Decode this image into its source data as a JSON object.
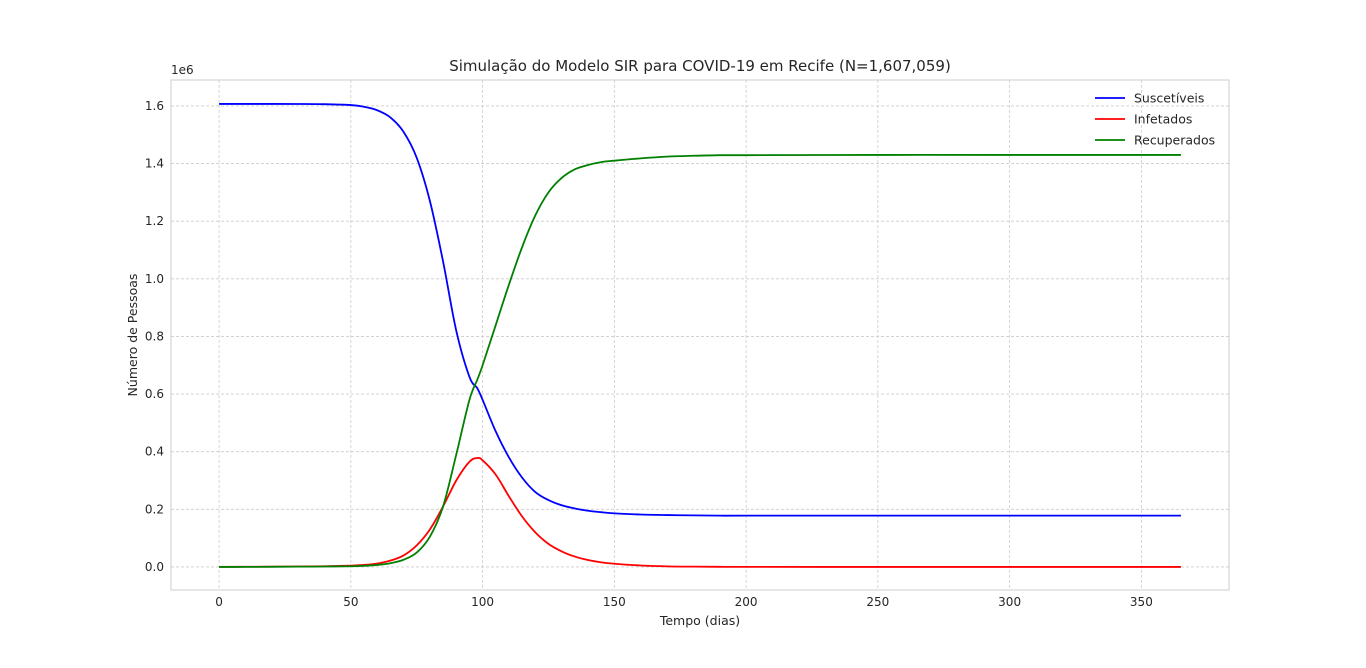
{
  "chart_data": {
    "type": "line",
    "title": "Simulação do Modelo SIR para COVID-19 em Recife (N=1,607,059)",
    "xlabel": "Tempo (dias)",
    "ylabel": "Número de Pessoas",
    "y_exponent_label": "1e6",
    "xlim": [
      -18.25,
      383.25
    ],
    "ylim": [
      -0.08,
      1.69
    ],
    "x_ticks": [
      0,
      50,
      100,
      150,
      200,
      250,
      300,
      350
    ],
    "x_tick_labels": [
      "0",
      "50",
      "100",
      "150",
      "200",
      "250",
      "300",
      "350"
    ],
    "y_ticks": [
      0.0,
      0.2,
      0.4,
      0.6,
      0.8,
      1.0,
      1.2,
      1.4,
      1.6
    ],
    "y_tick_labels": [
      "0.0",
      "0.2",
      "0.4",
      "0.6",
      "0.8",
      "1.0",
      "1.2",
      "1.4",
      "1.6"
    ],
    "grid": true,
    "legend_position": "top-right",
    "x": [
      0,
      10,
      20,
      30,
      40,
      50,
      55,
      60,
      65,
      70,
      75,
      80,
      85,
      90,
      95,
      98,
      100,
      105,
      110,
      115,
      120,
      125,
      130,
      135,
      140,
      145,
      150,
      160,
      170,
      180,
      190,
      200,
      250,
      300,
      365
    ],
    "series": [
      {
        "name": "Suscetíveis",
        "color": "#0000ff",
        "values": [
          1.607,
          1.607,
          1.607,
          1.6068,
          1.606,
          1.603,
          1.597,
          1.585,
          1.56,
          1.51,
          1.42,
          1.27,
          1.06,
          0.82,
          0.66,
          0.62,
          0.58,
          0.47,
          0.38,
          0.31,
          0.26,
          0.232,
          0.214,
          0.203,
          0.195,
          0.19,
          0.186,
          0.182,
          0.18,
          0.179,
          0.178,
          0.178,
          0.178,
          0.178,
          0.178
        ]
      },
      {
        "name": "Infetados",
        "color": "#ff0000",
        "values": [
          0.0003,
          0.0006,
          0.001,
          0.0015,
          0.0025,
          0.0045,
          0.007,
          0.012,
          0.022,
          0.04,
          0.075,
          0.13,
          0.21,
          0.3,
          0.365,
          0.378,
          0.37,
          0.32,
          0.245,
          0.175,
          0.12,
          0.08,
          0.054,
          0.036,
          0.024,
          0.016,
          0.011,
          0.005,
          0.002,
          0.001,
          0.0005,
          0.0002,
          0.0,
          0.0,
          0.0
        ]
      },
      {
        "name": "Recuperados",
        "color": "#008000",
        "values": [
          0.0,
          0.0002,
          0.0005,
          0.001,
          0.0015,
          0.0025,
          0.004,
          0.007,
          0.013,
          0.025,
          0.05,
          0.105,
          0.21,
          0.39,
          0.58,
          0.65,
          0.7,
          0.84,
          0.98,
          1.11,
          1.22,
          1.3,
          1.35,
          1.38,
          1.395,
          1.405,
          1.41,
          1.418,
          1.424,
          1.427,
          1.429,
          1.429,
          1.43,
          1.43,
          1.43
        ]
      }
    ]
  }
}
